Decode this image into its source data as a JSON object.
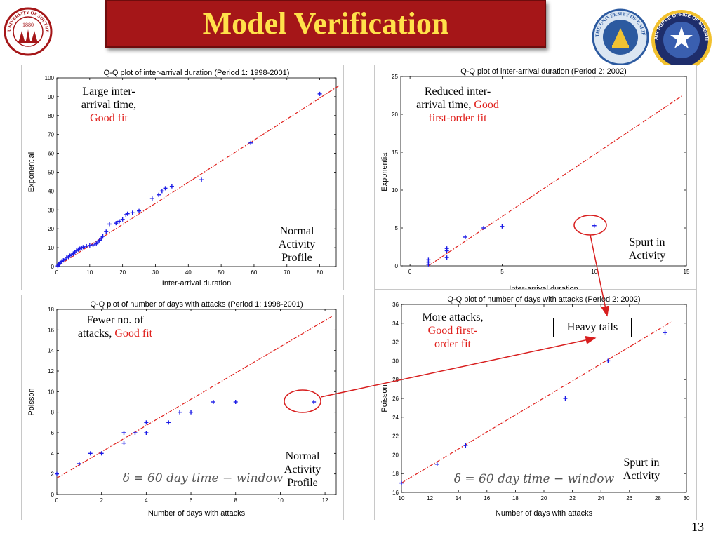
{
  "slide": {
    "title": "Model Verification",
    "number": "13",
    "heavy_tails": "Heavy tails",
    "logos": {
      "usc": {
        "top_text": "UNIVERSITY OF SOUTHERN",
        "bottom_text": "CALIFORNIA",
        "year": "1880"
      },
      "uc": {
        "text": "THE UNIVERSITY OF CALIFORNIA"
      },
      "afosr": {
        "text": "AIR FORCE OFFICE OF SCIENTIFIC RESEARCH"
      }
    }
  },
  "colors": {
    "banner": "#a51618",
    "title_text": "#ffe14a",
    "marker": "#1a1ae6",
    "fit_line": "#e0201c",
    "annotation_red": "#e0201c"
  },
  "chart_data": [
    {
      "type": "scatter",
      "title": "Q-Q plot of inter-arrival duration (Period 1: 1998-2001)",
      "xlabel": "Inter-arrival duration",
      "ylabel": "Exponential",
      "xlim": [
        0,
        85
      ],
      "ylim": [
        0,
        100
      ],
      "xticks": [
        0,
        10,
        20,
        30,
        40,
        50,
        60,
        70,
        80
      ],
      "yticks": [
        0,
        10,
        20,
        30,
        40,
        50,
        60,
        70,
        80,
        90,
        100
      ],
      "points": [
        [
          0.3,
          0.3
        ],
        [
          0.5,
          1
        ],
        [
          0.8,
          1.6
        ],
        [
          1,
          2.2
        ],
        [
          1.5,
          2.8
        ],
        [
          2,
          3.3
        ],
        [
          2.5,
          4
        ],
        [
          3,
          4.8
        ],
        [
          3.5,
          5.2
        ],
        [
          4,
          5.8
        ],
        [
          4.5,
          6.3
        ],
        [
          5,
          6.8
        ],
        [
          5.5,
          7.8
        ],
        [
          6,
          8.5
        ],
        [
          6.5,
          9
        ],
        [
          7,
          9.5
        ],
        [
          7.5,
          10
        ],
        [
          8,
          10.3
        ],
        [
          9,
          10.8
        ],
        [
          10,
          11.2
        ],
        [
          11,
          11.5
        ],
        [
          12,
          12
        ],
        [
          12.5,
          13
        ],
        [
          13,
          14
        ],
        [
          13.5,
          15
        ],
        [
          14,
          16
        ],
        [
          15,
          18.5
        ],
        [
          16,
          22.5
        ],
        [
          18,
          23
        ],
        [
          19,
          24
        ],
        [
          20,
          25
        ],
        [
          21,
          27.5
        ],
        [
          21.5,
          28
        ],
        [
          23,
          28.5
        ],
        [
          25,
          29.5
        ],
        [
          29,
          36
        ],
        [
          31,
          38
        ],
        [
          32,
          40
        ],
        [
          33,
          41.5
        ],
        [
          35,
          42.5
        ],
        [
          44,
          46
        ],
        [
          59,
          65.5
        ],
        [
          80,
          91.5
        ]
      ],
      "fit_line": [
        [
          0,
          0
        ],
        [
          86,
          96
        ]
      ],
      "annotations": {
        "fit": [
          "Large inter-",
          "arrival time,",
          "Good fit"
        ],
        "profile": [
          "Normal",
          "Activity",
          "Profile"
        ]
      }
    },
    {
      "type": "scatter",
      "title": "Q-Q plot of inter-arrival duration (Period 2: 2002)",
      "xlabel": "Inter-arrival duration",
      "ylabel": "Exponential",
      "xlim": [
        -0.5,
        15
      ],
      "ylim": [
        0,
        25
      ],
      "xticks": [
        0,
        5,
        10,
        15
      ],
      "yticks": [
        0,
        5,
        10,
        15,
        20,
        25
      ],
      "points": [
        [
          1,
          0.2
        ],
        [
          1,
          0.5
        ],
        [
          1,
          0.8
        ],
        [
          2,
          1.1
        ],
        [
          2,
          2
        ],
        [
          2,
          2.3
        ],
        [
          3,
          3.8
        ],
        [
          4,
          5
        ],
        [
          5,
          5.2
        ],
        [
          10,
          5.3
        ]
      ],
      "fit_line": [
        [
          1,
          0
        ],
        [
          14.8,
          22.5
        ]
      ],
      "annotations": {
        "fit": [
          "Reduced inter-",
          "arrival time, ",
          "Good",
          "first-order fit"
        ],
        "spurt": [
          "Spurt in",
          "Activity"
        ]
      }
    },
    {
      "type": "scatter",
      "title": "Q-Q plot of number of days with attacks (Period 1: 1998-2001)",
      "xlabel": "Number of days with attacks",
      "ylabel": "Poisson",
      "xlim": [
        0,
        12.5
      ],
      "ylim": [
        0,
        18
      ],
      "xticks": [
        0,
        2,
        4,
        6,
        8,
        10,
        12
      ],
      "yticks": [
        0,
        2,
        4,
        6,
        8,
        10,
        12,
        14,
        16,
        18
      ],
      "points": [
        [
          0,
          2
        ],
        [
          1,
          3
        ],
        [
          1.5,
          4
        ],
        [
          2,
          4
        ],
        [
          3,
          5
        ],
        [
          3,
          6
        ],
        [
          3.5,
          6
        ],
        [
          4,
          6
        ],
        [
          4,
          7
        ],
        [
          5,
          7
        ],
        [
          5.5,
          8
        ],
        [
          6,
          8
        ],
        [
          7,
          9
        ],
        [
          8,
          9
        ],
        [
          11.5,
          9
        ]
      ],
      "fit_line": [
        [
          0,
          1.6
        ],
        [
          12.3,
          17.3
        ]
      ],
      "formula": "δ = 60  day  time − window",
      "annotations": {
        "fit": [
          "Fewer no. of",
          "attacks, ",
          "Good fit"
        ],
        "profile": [
          "Normal",
          "Activity",
          "Profile"
        ]
      }
    },
    {
      "type": "scatter",
      "title": "Q-Q plot of number of days with attacks (Period 2: 2002)",
      "xlabel": "Number of days with attacks",
      "ylabel": "Poisson",
      "xlim": [
        10,
        30
      ],
      "ylim": [
        16,
        36
      ],
      "xticks": [
        10,
        12,
        14,
        16,
        18,
        20,
        22,
        24,
        26,
        28,
        30
      ],
      "yticks": [
        16,
        18,
        20,
        22,
        24,
        26,
        28,
        30,
        32,
        34,
        36
      ],
      "points": [
        [
          10,
          17
        ],
        [
          12.5,
          19
        ],
        [
          14.5,
          21
        ],
        [
          21.5,
          26
        ],
        [
          24.5,
          30
        ],
        [
          28.5,
          33
        ]
      ],
      "fit_line": [
        [
          10,
          17
        ],
        [
          29,
          34.2
        ]
      ],
      "formula": "δ = 60  day  time − window",
      "annotations": {
        "fit": [
          "More attacks,",
          "Good first-",
          "order fit"
        ],
        "spurt": [
          "Spurt in",
          "Activity"
        ]
      }
    }
  ]
}
